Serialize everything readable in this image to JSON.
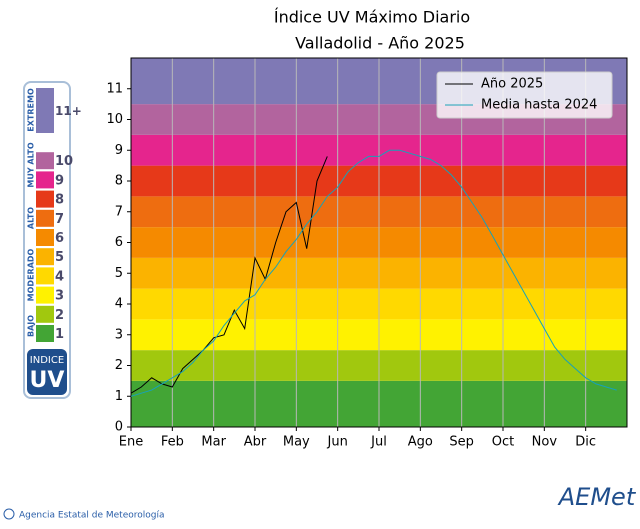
{
  "chart_data": {
    "type": "line",
    "title": "Índice UV Máximo Diario",
    "subtitle": "Valladolid - Año 2025",
    "categories": [
      "Ene",
      null,
      null,
      null,
      "Feb",
      null,
      null,
      null,
      "Mar",
      null,
      null,
      null,
      "Abr",
      null,
      null,
      null,
      "May",
      null,
      null,
      null,
      "Jun",
      null,
      null,
      null,
      "Jul",
      null,
      null,
      null,
      "Ago",
      null,
      null,
      null,
      "Sep",
      null,
      null,
      null,
      "Oct",
      null,
      null,
      null,
      "Nov",
      null,
      null,
      null,
      "Dic",
      null,
      null,
      null
    ],
    "series": [
      {
        "name": "Año 2025",
        "color": "#000000",
        "values": [
          1.1,
          1.3,
          1.6,
          1.4,
          1.3,
          1.9,
          2.2,
          2.5,
          2.9,
          3.0,
          3.8,
          3.2,
          5.5,
          4.8,
          6.0,
          7.0,
          7.3,
          5.8,
          8.0,
          8.8,
          null,
          null,
          null,
          null,
          null,
          null,
          null,
          null,
          null,
          null,
          null,
          null,
          null,
          null,
          null,
          null,
          null,
          null,
          null,
          null,
          null,
          null,
          null,
          null,
          null,
          null,
          null,
          null
        ]
      },
      {
        "name": "Media hasta 2024",
        "color": "#17a2b8",
        "values": [
          1.0,
          1.1,
          1.2,
          1.4,
          1.6,
          1.8,
          2.1,
          2.5,
          2.8,
          3.3,
          3.7,
          4.1,
          4.3,
          4.8,
          5.2,
          5.7,
          6.1,
          6.6,
          7.0,
          7.5,
          7.8,
          8.3,
          8.6,
          8.8,
          8.8,
          9.0,
          9.0,
          8.9,
          8.8,
          8.7,
          8.5,
          8.2,
          7.8,
          7.3,
          6.8,
          6.2,
          5.6,
          5.0,
          4.4,
          3.8,
          3.2,
          2.6,
          2.2,
          1.9,
          1.6,
          1.4,
          1.3,
          1.2
        ]
      }
    ],
    "ylim": [
      0,
      12
    ],
    "yticks": [
      0,
      1,
      2,
      3,
      4,
      5,
      6,
      7,
      8,
      9,
      10,
      11
    ],
    "grid": true,
    "legend": "upper-right",
    "bands": [
      {
        "from": 0,
        "to": 1.5,
        "color": "#43a535"
      },
      {
        "from": 1.5,
        "to": 2.5,
        "color": "#a1c80e"
      },
      {
        "from": 2.5,
        "to": 3.5,
        "color": "#fff200"
      },
      {
        "from": 3.5,
        "to": 4.5,
        "color": "#ffd900"
      },
      {
        "from": 4.5,
        "to": 5.5,
        "color": "#fbb300"
      },
      {
        "from": 5.5,
        "to": 6.5,
        "color": "#f58a00"
      },
      {
        "from": 6.5,
        "to": 7.5,
        "color": "#ee6d10"
      },
      {
        "from": 7.5,
        "to": 8.5,
        "color": "#e63919"
      },
      {
        "from": 8.5,
        "to": 9.5,
        "color": "#e5258d"
      },
      {
        "from": 9.5,
        "to": 10.5,
        "color": "#b2649e"
      },
      {
        "from": 10.5,
        "to": 12,
        "color": "#7f79b5"
      }
    ]
  },
  "uv_scale": {
    "levels": [
      "1",
      "2",
      "3",
      "4",
      "5",
      "6",
      "7",
      "8",
      "9",
      "10",
      "11+"
    ],
    "groups": [
      "BAJO",
      "MODERADO",
      "ALTO",
      "MUY ALTO",
      "EXTREMO"
    ],
    "badge": [
      "INDICE",
      "UV"
    ]
  },
  "footer": {
    "agency": "Agencia Estatal de Meteorología",
    "logo": "AEMet"
  }
}
